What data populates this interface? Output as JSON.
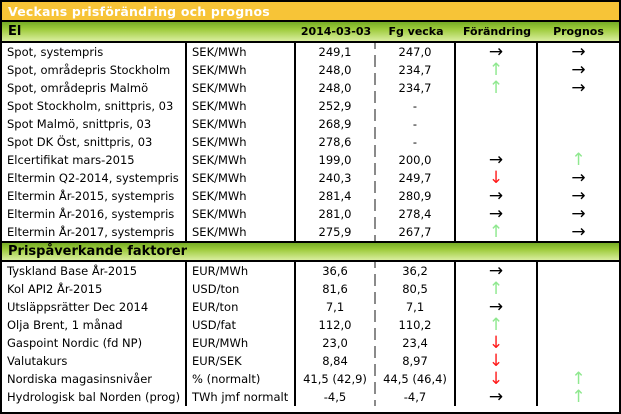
{
  "title": "Veckans prisförändring och prognos",
  "columns": {
    "date": "2014-03-03",
    "prev": "Fg vecka",
    "change": "Förändring",
    "forecast": "Prognos"
  },
  "colors": {
    "title_band_bg": "#F7C437",
    "title_text": "#FFFFFF",
    "section_band_green_top": "#76AC25",
    "section_band_green_bottom": "#D9EE9F",
    "arrow_right": "#000000",
    "arrow_up": "#8FE88F",
    "arrow_down": "#FF1A1A"
  },
  "icons": {
    "right": "right-arrow-icon",
    "up": "up-arrow-icon",
    "down": "down-arrow-icon"
  },
  "sections": [
    {
      "name": "El",
      "rows": [
        {
          "label": "Spot, systempris",
          "unit": "SEK/MWh",
          "current": "249,1",
          "prev": "247,0",
          "change": "right",
          "forecast": "right"
        },
        {
          "label": "Spot, områdepris Stockholm",
          "unit": "SEK/MWh",
          "current": "248,0",
          "prev": "234,7",
          "change": "up",
          "forecast": "right"
        },
        {
          "label": "Spot, områdepris Malmö",
          "unit": "SEK/MWh",
          "current": "248,0",
          "prev": "234,7",
          "change": "up",
          "forecast": "right"
        },
        {
          "label": "Spot Stockholm, snittpris,  03",
          "unit": "SEK/MWh",
          "current": "252,9",
          "prev": "-",
          "change": "",
          "forecast": ""
        },
        {
          "label": "Spot Malmö, snittpris,  03",
          "unit": "SEK/MWh",
          "current": "268,9",
          "prev": "-",
          "change": "",
          "forecast": ""
        },
        {
          "label": "Spot DK Öst, snittpris,  03",
          "unit": "SEK/MWh",
          "current": "278,6",
          "prev": "-",
          "change": "",
          "forecast": ""
        },
        {
          "label": "Elcertifikat mars-2015",
          "unit": "SEK/MWh",
          "current": "199,0",
          "prev": "200,0",
          "change": "right",
          "forecast": "up"
        },
        {
          "label": "Eltermin Q2-2014, systempris",
          "unit": "SEK/MWh",
          "current": "240,3",
          "prev": "249,7",
          "change": "down",
          "forecast": "right"
        },
        {
          "label": "Eltermin År-2015, systempris",
          "unit": "SEK/MWh",
          "current": "281,4",
          "prev": "280,9",
          "change": "right",
          "forecast": "right"
        },
        {
          "label": "Eltermin År-2016, systempris",
          "unit": "SEK/MWh",
          "current": "281,0",
          "prev": "278,4",
          "change": "right",
          "forecast": "right"
        },
        {
          "label": "Eltermin År-2017, systempris",
          "unit": "SEK/MWh",
          "current": "275,9",
          "prev": "267,7",
          "change": "up",
          "forecast": "right"
        }
      ]
    },
    {
      "name": "Prispåverkande faktorer",
      "rows": [
        {
          "label": "Tyskland Base År-2015",
          "unit": "EUR/MWh",
          "current": "36,6",
          "prev": "36,2",
          "change": "right",
          "forecast": ""
        },
        {
          "label": "Kol API2 År-2015",
          "unit": "USD/ton",
          "current": "81,6",
          "prev": "80,5",
          "change": "up",
          "forecast": ""
        },
        {
          "label": "Utsläppsrätter Dec 2014",
          "unit": "EUR/ton",
          "current": "7,1",
          "prev": "7,1",
          "change": "right",
          "forecast": ""
        },
        {
          "label": "Olja Brent, 1 månad",
          "unit": "USD/fat",
          "current": "112,0",
          "prev": "110,2",
          "change": "up",
          "forecast": ""
        },
        {
          "label": "Gaspoint Nordic (fd NP)",
          "unit": "EUR/MWh",
          "current": "23,0",
          "prev": "23,4",
          "change": "down",
          "forecast": ""
        },
        {
          "label": "Valutakurs",
          "unit": "EUR/SEK",
          "current": "8,84",
          "prev": "8,97",
          "change": "down",
          "forecast": ""
        },
        {
          "label": "Nordiska magasinsnivåer",
          "unit": "%  (normalt)",
          "current": "41,5 (42,9)",
          "prev": "44,5 (46,4)",
          "change": "down",
          "forecast": "up"
        },
        {
          "label": "Hydrologisk bal Norden (prog)",
          "unit": "TWh jmf normalt",
          "current": "-4,5",
          "prev": "-4,7",
          "change": "right",
          "forecast": "up"
        }
      ]
    }
  ]
}
